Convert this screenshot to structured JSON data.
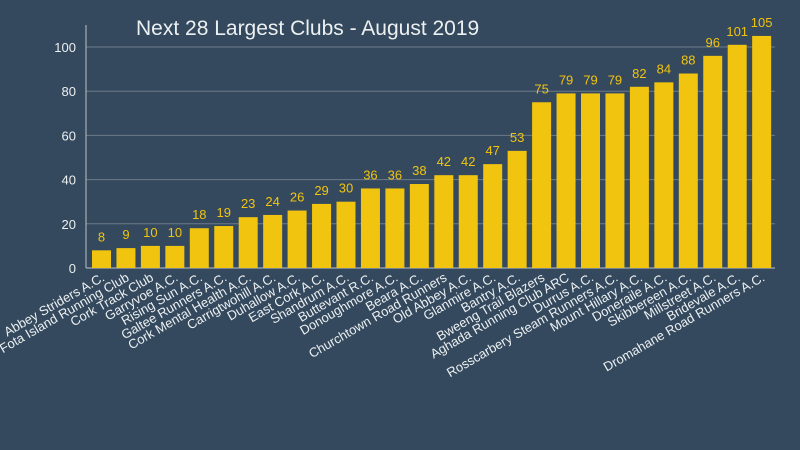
{
  "chart_data": {
    "type": "bar",
    "title": "Next 28 Largest Clubs - August 2019",
    "categories": [
      "Abbey Striders A.C.",
      "Fota Island Running Club",
      "Cork Track Club",
      "Garryvoe A.C.",
      "Rising Sun A.C.",
      "Galtee Runners A.C.",
      "Cork Mental Health A.C.",
      "Carrigtwohill A.C.",
      "Duhallow A.C.",
      "East Cork A.C.",
      "Shandrum A.C.",
      "Buttevant R.C.",
      "Donoughmore A.C.",
      "Beara A.C.",
      "Churchtown Road Runners",
      "Old Abbey A.C.",
      "Glanmire A.C.",
      "Bantry A.C.",
      "Bweeng Trail Blazers",
      "Aghada Running Club ARC",
      "Durrus A.C.",
      "Rosscarbery Steam Runners A.C.",
      "Mount Hillary A.C.",
      "Doneraile A.C.",
      "Skibbereen A.C.",
      "Millstreet A.C.",
      "Bridevale A.C.",
      "Dromahane Road Runners A.C."
    ],
    "values": [
      8,
      9,
      10,
      10,
      18,
      19,
      23,
      24,
      26,
      29,
      30,
      36,
      36,
      38,
      42,
      42,
      47,
      53,
      75,
      79,
      79,
      79,
      82,
      84,
      88,
      96,
      101,
      105
    ],
    "yticks": [
      0,
      20,
      40,
      60,
      80,
      100
    ],
    "ylim": [
      0,
      105
    ],
    "grid": true,
    "colors": {
      "bar": "#f1c40f",
      "label": "#f1c40f",
      "text": "#ecf0f1",
      "grid": "#6c7a89",
      "background": "#34495e"
    }
  }
}
